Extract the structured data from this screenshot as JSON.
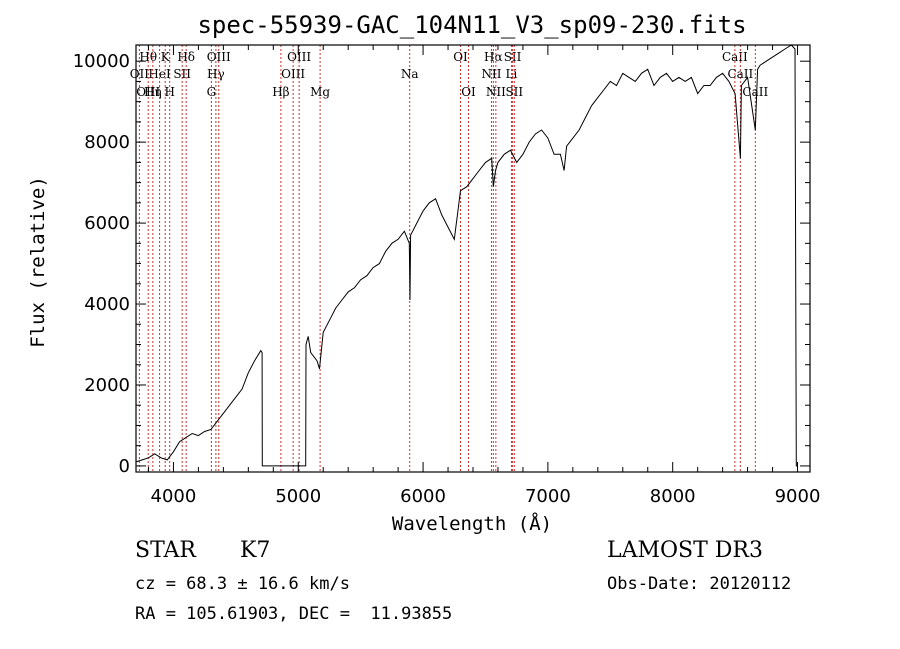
{
  "chart_data": {
    "type": "line",
    "title": "spec-55939-GAC_104N11_V3_sp09-230.fits",
    "xlabel": "Wavelength (Å)",
    "ylabel": "Flux (relative)",
    "xlim": [
      3700,
      9100
    ],
    "ylim": [
      -150,
      10400
    ],
    "x_ticks": [
      4000,
      5000,
      6000,
      7000,
      8000,
      9000
    ],
    "y_ticks": [
      0,
      2000,
      4000,
      6000,
      8000,
      10000
    ],
    "grid": false,
    "series": [
      {
        "name": "spectrum",
        "x": [
          3700,
          3750,
          3800,
          3850,
          3900,
          3950,
          4000,
          4050,
          4100,
          4150,
          4200,
          4250,
          4300,
          4350,
          4400,
          4450,
          4500,
          4550,
          4600,
          4650,
          4700,
          4710,
          4712,
          4760,
          4800,
          4850,
          4900,
          4950,
          5000,
          5050,
          5060,
          5062,
          5080,
          5100,
          5150,
          5170,
          5200,
          5250,
          5300,
          5350,
          5400,
          5450,
          5500,
          5550,
          5600,
          5650,
          5700,
          5750,
          5800,
          5850,
          5890,
          5895,
          5900,
          5950,
          6000,
          6050,
          6100,
          6150,
          6200,
          6250,
          6300,
          6350,
          6400,
          6450,
          6500,
          6550,
          6563,
          6580,
          6600,
          6650,
          6700,
          6750,
          6800,
          6850,
          6900,
          6950,
          7000,
          7050,
          7100,
          7130,
          7150,
          7200,
          7250,
          7300,
          7350,
          7400,
          7450,
          7500,
          7550,
          7600,
          7650,
          7700,
          7750,
          7800,
          7850,
          7900,
          7950,
          8000,
          8050,
          8100,
          8150,
          8200,
          8250,
          8300,
          8350,
          8400,
          8450,
          8500,
          8542,
          8550,
          8600,
          8662,
          8680,
          8700,
          8750,
          8800,
          8850,
          8900,
          8950,
          8980,
          8990,
          9000
        ],
        "y": [
          100,
          150,
          200,
          300,
          200,
          150,
          350,
          600,
          700,
          800,
          750,
          850,
          900,
          1100,
          1300,
          1500,
          1700,
          1900,
          2300,
          2600,
          2850,
          2800,
          0,
          0,
          0,
          0,
          0,
          0,
          0,
          0,
          0,
          3000,
          3200,
          2800,
          2600,
          2400,
          3300,
          3600,
          3900,
          4100,
          4300,
          4400,
          4600,
          4700,
          4900,
          5000,
          5300,
          5500,
          5600,
          5800,
          5500,
          4100,
          5700,
          6000,
          6300,
          6500,
          6600,
          6200,
          5900,
          5600,
          6800,
          6900,
          7100,
          7300,
          7500,
          7600,
          6900,
          7300,
          7500,
          7700,
          7800,
          7500,
          7700,
          8000,
          8200,
          8300,
          8100,
          7700,
          7700,
          7300,
          7900,
          8100,
          8300,
          8600,
          8900,
          9100,
          9300,
          9500,
          9400,
          9700,
          9600,
          9500,
          9700,
          9800,
          9400,
          9600,
          9700,
          9500,
          9600,
          9500,
          9600,
          9200,
          9400,
          9400,
          9600,
          9700,
          9500,
          9200,
          7600,
          9400,
          9600,
          8300,
          9800,
          9900,
          10000,
          10100,
          10200,
          10300,
          10400,
          10300,
          0,
          0
        ]
      }
    ],
    "spectral_lines": [
      {
        "wl": 3727,
        "labels": [
          "OII"
        ],
        "rows": [
          1
        ]
      },
      {
        "wl": 3798,
        "labels": [
          "Hθ",
          "OIII"
        ],
        "rows": [
          0,
          2
        ]
      },
      {
        "wl": 3835,
        "labels": [
          "Hη"
        ],
        "rows": [
          2
        ]
      },
      {
        "wl": 3889,
        "labels": [
          "HeI"
        ],
        "rows": [
          1
        ]
      },
      {
        "wl": 3934,
        "labels": [
          "K"
        ],
        "rows": [
          0
        ]
      },
      {
        "wl": 3970,
        "labels": [
          "H"
        ],
        "rows": [
          2
        ]
      },
      {
        "wl": 4070,
        "labels": [
          "SII"
        ],
        "rows": [
          1
        ]
      },
      {
        "wl": 4102,
        "labels": [
          "Hδ"
        ],
        "rows": [
          0
        ]
      },
      {
        "wl": 4304,
        "labels": [
          "G"
        ],
        "rows": [
          2
        ]
      },
      {
        "wl": 4340,
        "labels": [
          "Hγ"
        ],
        "rows": [
          1
        ]
      },
      {
        "wl": 4363,
        "labels": [
          "OIII"
        ],
        "rows": [
          0
        ]
      },
      {
        "wl": 4861,
        "labels": [
          "Hβ"
        ],
        "rows": [
          2
        ]
      },
      {
        "wl": 4959,
        "labels": [
          "OIII"
        ],
        "rows": [
          1
        ]
      },
      {
        "wl": 5007,
        "labels": [
          "OIII"
        ],
        "rows": [
          0
        ]
      },
      {
        "wl": 5175,
        "labels": [
          "Mg"
        ],
        "rows": [
          2
        ]
      },
      {
        "wl": 5893,
        "labels": [
          "Na"
        ],
        "rows": [
          1
        ]
      },
      {
        "wl": 6300,
        "labels": [
          "OI"
        ],
        "rows": [
          0
        ]
      },
      {
        "wl": 6364,
        "labels": [
          "OI"
        ],
        "rows": [
          2
        ]
      },
      {
        "wl": 6548,
        "labels": [
          "NII"
        ],
        "rows": [
          1
        ]
      },
      {
        "wl": 6563,
        "labels": [
          "Hα"
        ],
        "rows": [
          0
        ]
      },
      {
        "wl": 6583,
        "labels": [
          "NII"
        ],
        "rows": [
          2
        ]
      },
      {
        "wl": 6708,
        "labels": [
          "Li"
        ],
        "rows": [
          1
        ]
      },
      {
        "wl": 6717,
        "labels": [
          "SII"
        ],
        "rows": [
          0
        ]
      },
      {
        "wl": 6731,
        "labels": [
          "SII"
        ],
        "rows": [
          2
        ]
      },
      {
        "wl": 8498,
        "labels": [
          "CaII"
        ],
        "rows": [
          0
        ]
      },
      {
        "wl": 8542,
        "labels": [
          "CaII"
        ],
        "rows": [
          1
        ]
      },
      {
        "wl": 8662,
        "labels": [
          "CaII"
        ],
        "rows": [
          2
        ]
      }
    ],
    "line_color": "#000000",
    "marker_line_color": "#c83232"
  },
  "info": {
    "class": "STAR",
    "subclass": "K7",
    "survey": "LAMOST DR3",
    "cz": "cz = 68.3 ± 16.6 km/s",
    "obs_date": "Obs-Date: 20120112",
    "coords": "RA = 105.61903, DEC =  11.93855"
  }
}
